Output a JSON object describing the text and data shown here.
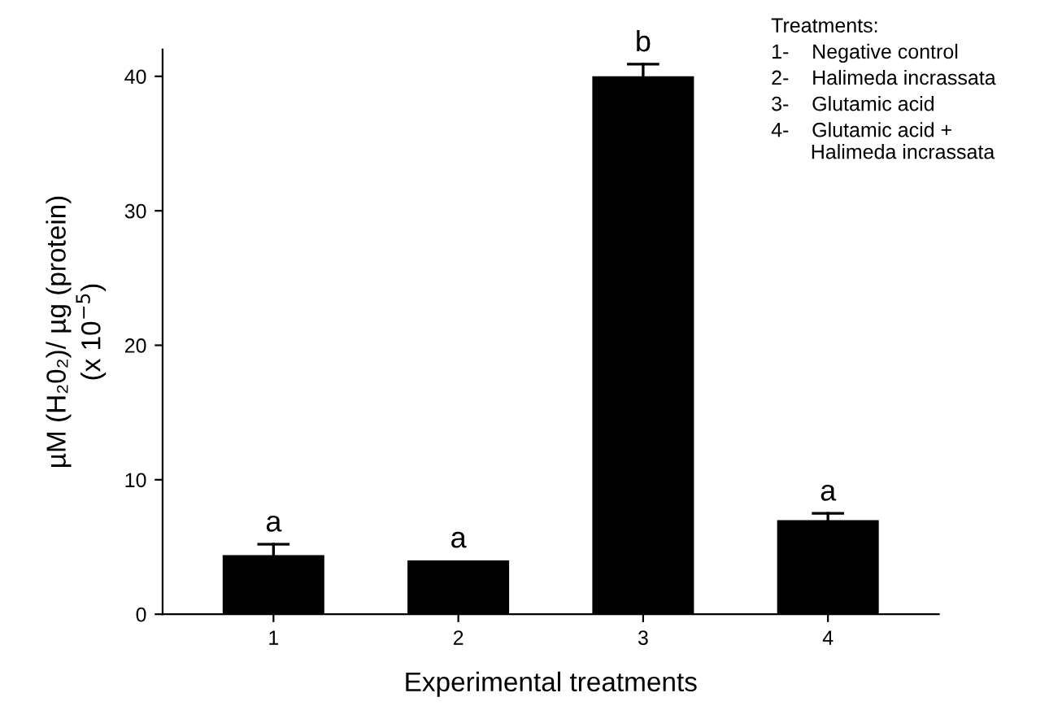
{
  "chart_data": {
    "type": "bar",
    "xlabel": "Experimental treatments",
    "ylabel": "µM (H₂0₂)/ µg (protein)\n(x 10$^{−5}$)",
    "categories": [
      "1",
      "2",
      "3",
      "4"
    ],
    "values": [
      4.4,
      4.0,
      40.0,
      7.0
    ],
    "errors": [
      [
        4.4,
        5.2
      ],
      null,
      [
        40.0,
        40.9
      ],
      [
        7.0,
        7.5
      ]
    ],
    "color": "#000000",
    "ylim": [
      0,
      42
    ],
    "yticks": [
      0,
      10,
      20,
      30,
      40
    ],
    "grid": false,
    "annotations": [
      {
        "text": "a",
        "x": "1",
        "y": 5.2
      },
      {
        "text": "a",
        "x": "2",
        "y": 4.0
      },
      {
        "text": "b",
        "x": "3",
        "y": 40.9
      },
      {
        "text": "a",
        "x": "4",
        "y": 7.5
      },
      "Treatments:",
      "1-    Negative control",
      "2-    Halimeda incrassata",
      "3-    Glutamic acid",
      "4-    Glutamic acid +\n       Halimeda incrassata"
    ]
  }
}
